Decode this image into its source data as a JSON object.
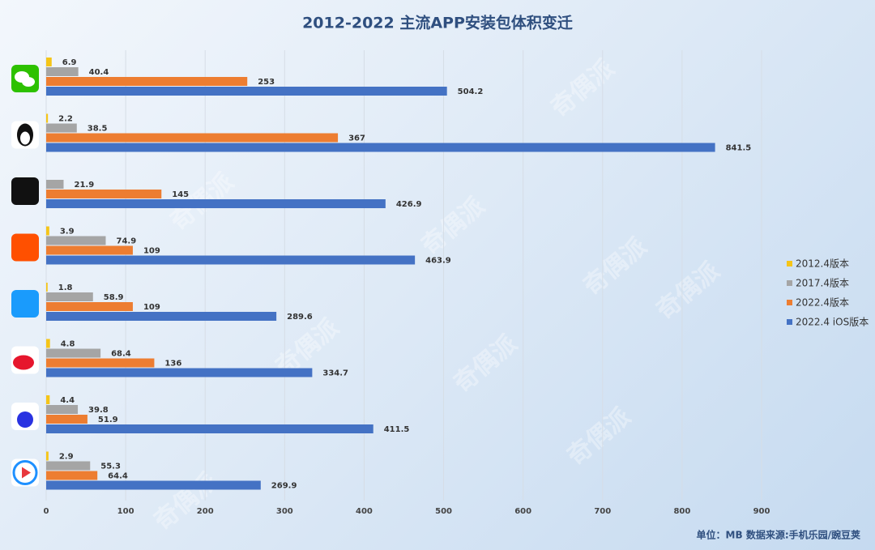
{
  "chart_data": {
    "type": "bar",
    "orientation": "horizontal",
    "title": "2012-2022 主流APP安装包体积变迁",
    "categories": [
      null,
      null,
      null,
      null,
      null,
      null,
      null,
      null
    ],
    "series": [
      {
        "name": "2012.4版本",
        "color": "#f5c518",
        "values": [
          6.9,
          2.2,
          null,
          3.9,
          1.8,
          4.8,
          4.4,
          2.9
        ]
      },
      {
        "name": "2017.4版本",
        "color": "#a5a5a5",
        "values": [
          40.4,
          38.5,
          21.9,
          74.9,
          58.9,
          68.4,
          39.8,
          55.3
        ]
      },
      {
        "name": "2022.4版本",
        "color": "#ed7d31",
        "values": [
          253,
          367,
          145,
          109,
          109,
          136,
          51.9,
          64.4
        ]
      },
      {
        "name": "2022.4 iOS版本",
        "color": "#4472c4",
        "values": [
          504.2,
          841.5,
          426.9,
          463.9,
          289.6,
          334.7,
          411.5,
          269.9
        ]
      }
    ],
    "xlim": [
      0,
      900
    ],
    "xticks": [
      0,
      100,
      200,
      300,
      400,
      500,
      600,
      700,
      800,
      900
    ],
    "grid": true,
    "legend": "right",
    "note": "单位：MB  数据来源:手机乐园/豌豆荚",
    "watermark": "奇偶派"
  }
}
